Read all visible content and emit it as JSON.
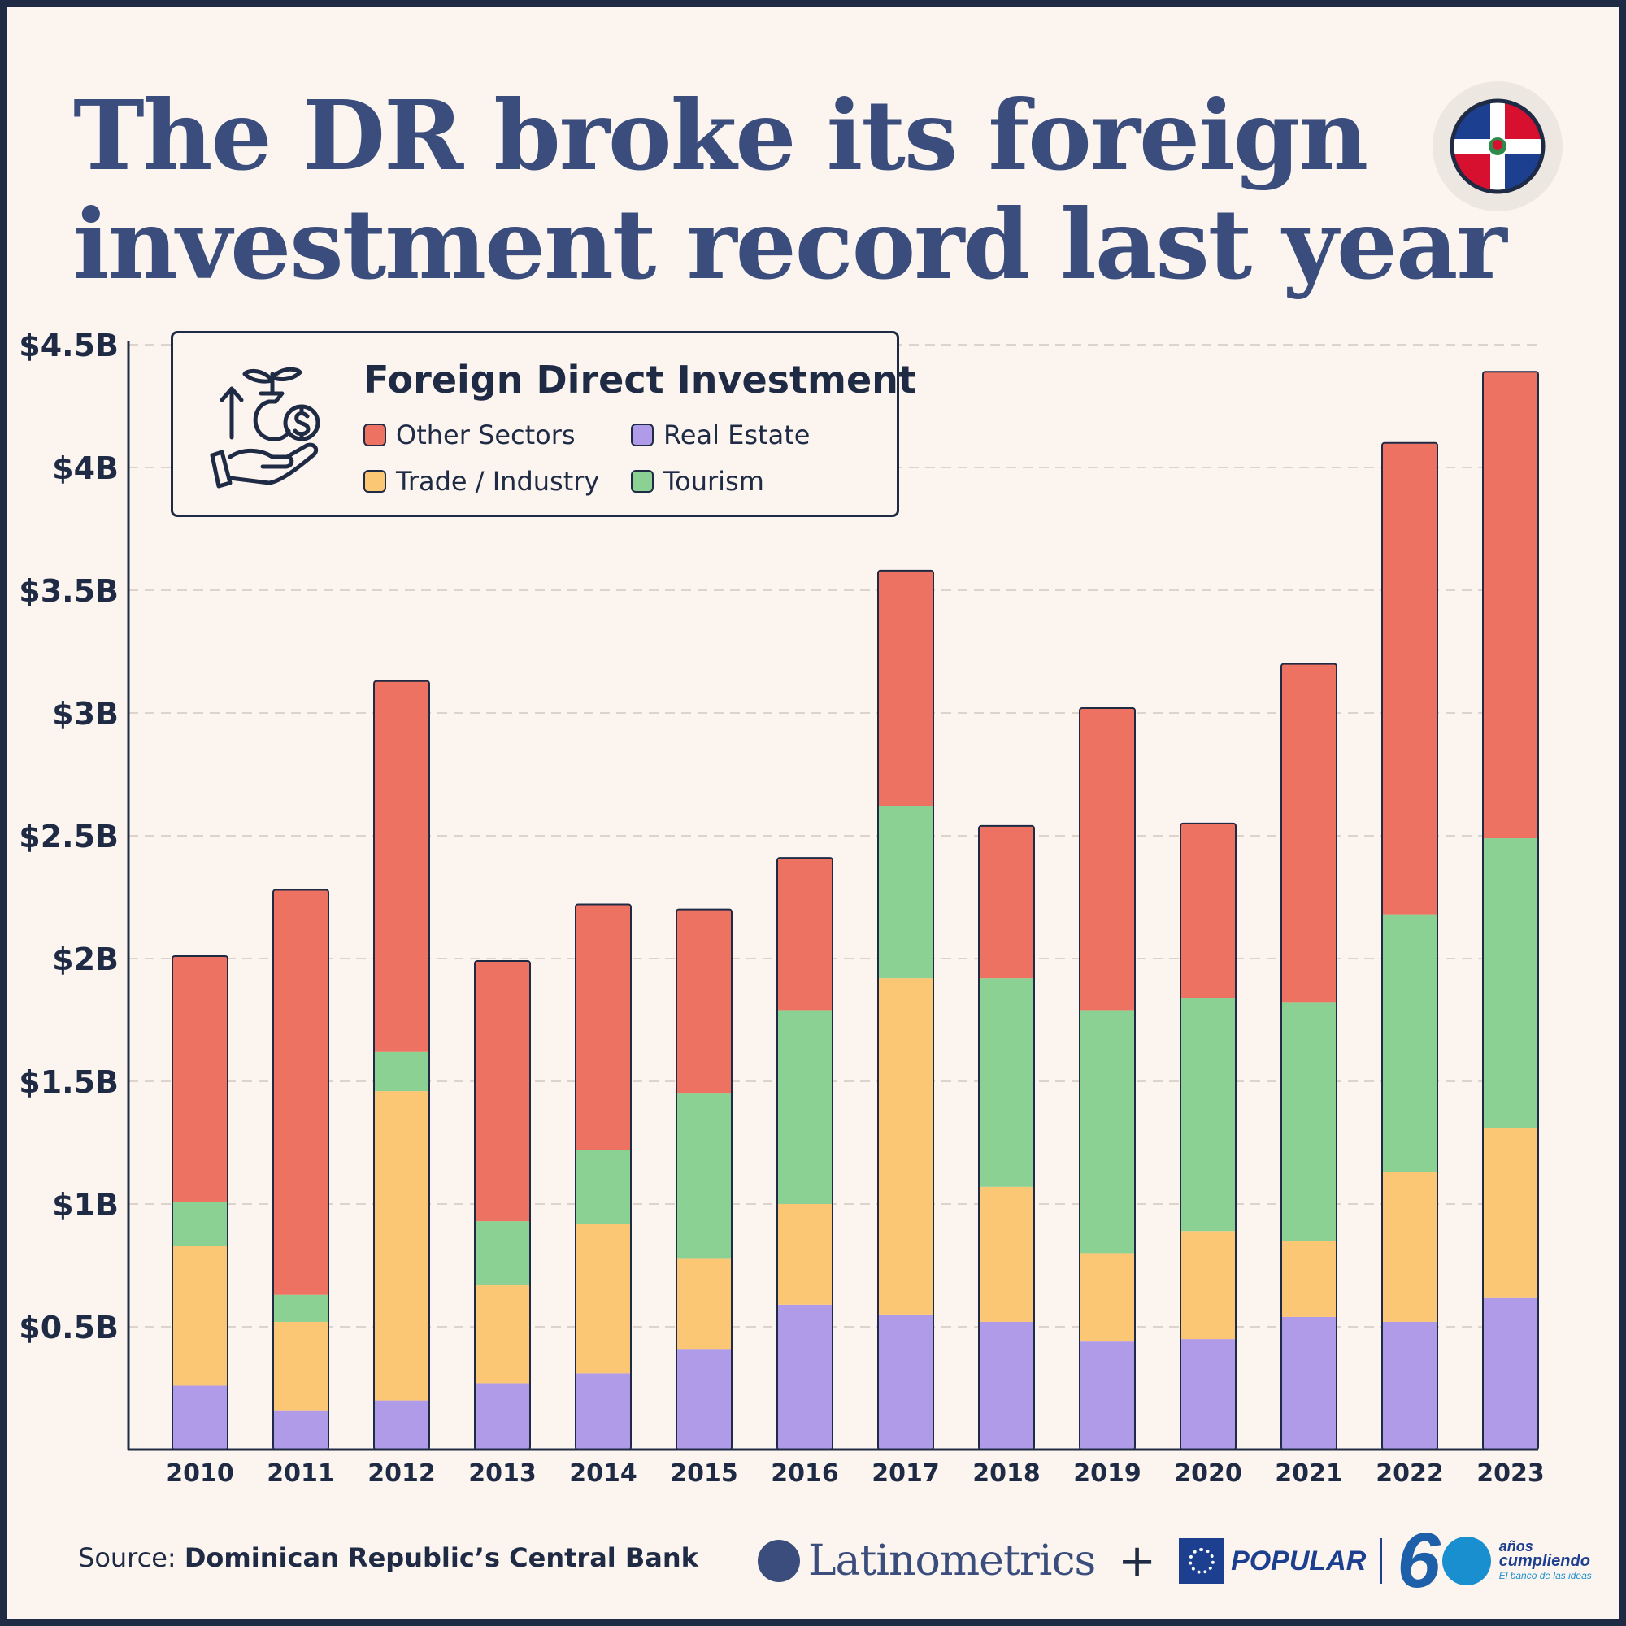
{
  "title": {
    "line1": "The DR broke its foreign",
    "line2": "investment record last year"
  },
  "flag": {
    "icon": "dominican-republic-flag-icon"
  },
  "legend": {
    "icon": "investment-hand-plant-icon",
    "title": "Foreign Direct Investment",
    "items": [
      {
        "label": "Other Sectors",
        "color": "#ee7262"
      },
      {
        "label": "Real Estate",
        "color": "#b09be8"
      },
      {
        "label": "Trade / Industry",
        "color": "#fcc775"
      },
      {
        "label": "Tourism",
        "color": "#8ad193"
      }
    ]
  },
  "chart_data": {
    "type": "bar",
    "stacked": true,
    "title": "Foreign Direct Investment",
    "xlabel": "",
    "ylabel": "",
    "ylim": [
      0,
      4.5
    ],
    "yticks": [
      {
        "value": 0.5,
        "label": "$0.5B"
      },
      {
        "value": 1,
        "label": "$1B"
      },
      {
        "value": 1.5,
        "label": "$1.5B"
      },
      {
        "value": 2,
        "label": "$2B"
      },
      {
        "value": 2.5,
        "label": "$2.5B"
      },
      {
        "value": 3,
        "label": "$3B"
      },
      {
        "value": 3.5,
        "label": "$3.5B"
      },
      {
        "value": 4,
        "label": "$4B"
      },
      {
        "value": 4.5,
        "label": "$4.5B"
      }
    ],
    "grid": true,
    "categories": [
      "2010",
      "2011",
      "2012",
      "2013",
      "2014",
      "2015",
      "2016",
      "2017",
      "2018",
      "2019",
      "2020",
      "2021",
      "2022",
      "2023"
    ],
    "series": [
      {
        "name": "Real Estate",
        "color": "#b09be8",
        "values": [
          0.26,
          0.16,
          0.2,
          0.27,
          0.31,
          0.41,
          0.59,
          0.55,
          0.52,
          0.44,
          0.45,
          0.54,
          0.52,
          0.62
        ]
      },
      {
        "name": "Trade / Industry",
        "color": "#fcc775",
        "values": [
          0.57,
          0.36,
          1.26,
          0.4,
          0.61,
          0.37,
          0.41,
          1.37,
          0.55,
          0.36,
          0.44,
          0.31,
          0.61,
          0.69
        ]
      },
      {
        "name": "Tourism",
        "color": "#8ad193",
        "values": [
          0.18,
          0.11,
          0.16,
          0.26,
          0.3,
          0.67,
          0.79,
          0.7,
          0.85,
          0.99,
          0.95,
          0.97,
          1.05,
          1.18
        ]
      },
      {
        "name": "Other Sectors",
        "color": "#ee7262",
        "values": [
          1.0,
          1.65,
          1.51,
          1.06,
          1.0,
          0.75,
          0.62,
          0.96,
          0.62,
          1.23,
          0.71,
          1.38,
          1.92,
          1.9
        ]
      }
    ]
  },
  "footer": {
    "source_prefix": "Source:",
    "source_name": "Dominican Republic’s Central Bank",
    "brand1": "Latinometrics",
    "plus": "+",
    "brand2": "POPULAR",
    "sixty": "6",
    "anios_line1": "años",
    "anios_line2": "cumpliendo",
    "anios_line3": "El banco de las ideas"
  }
}
